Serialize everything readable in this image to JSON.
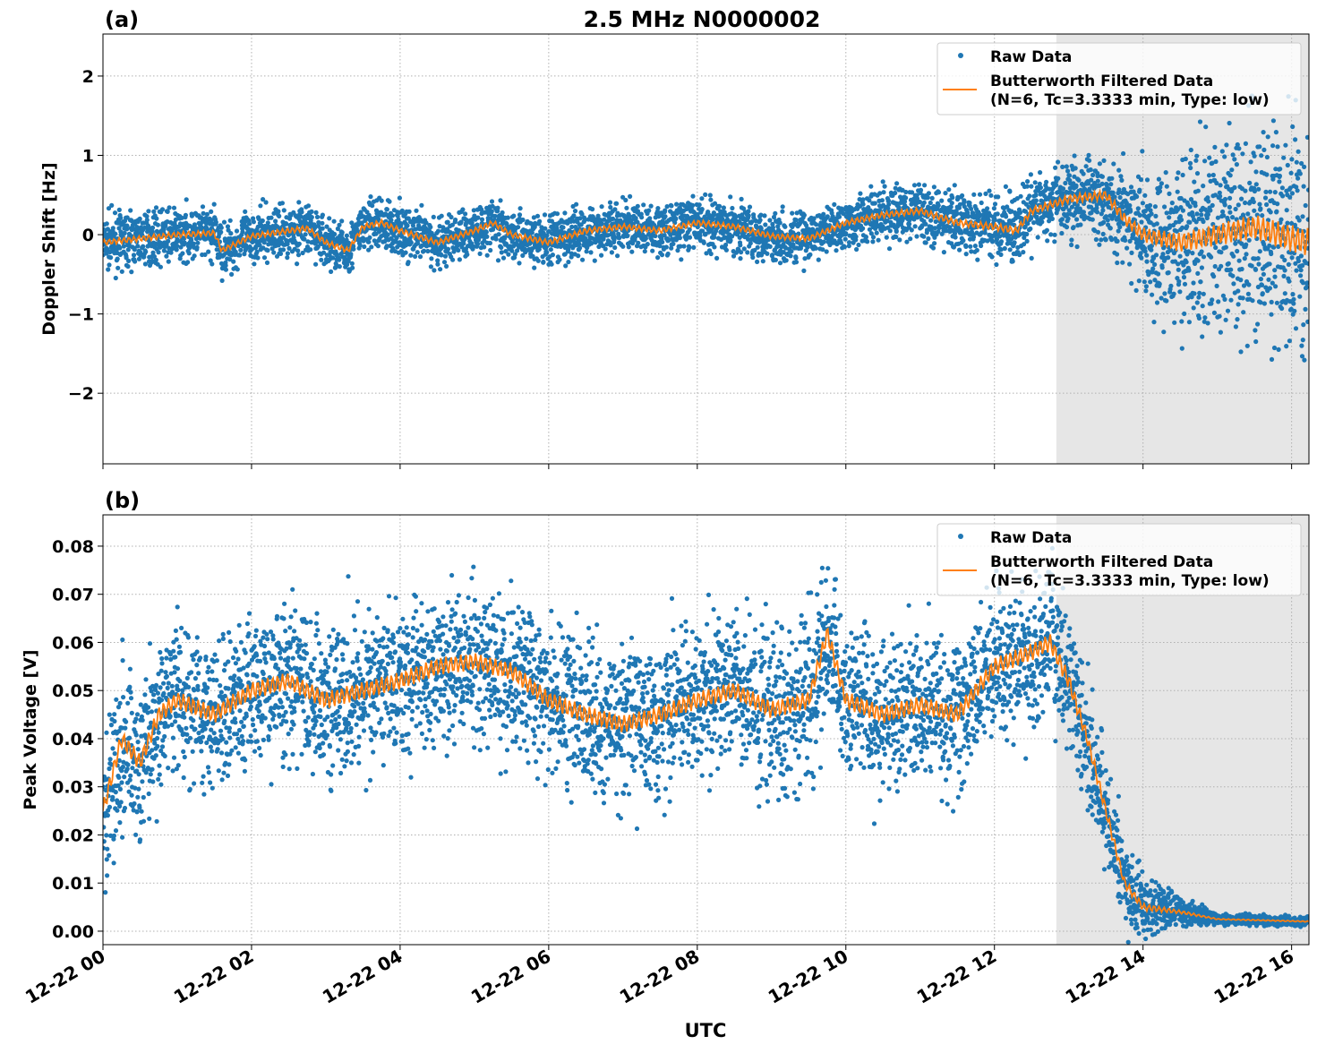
{
  "figure_title": "2.5 MHz N0000002",
  "x_tick_labels": [
    "12-22 00",
    "12-22 02",
    "12-22 04",
    "12-22 06",
    "12-22 08",
    "12-22 10",
    "12-22 12",
    "12-22 14",
    "12-22 16"
  ],
  "x_tick_hours": [
    0,
    2,
    4,
    6,
    8,
    10,
    12,
    14,
    16
  ],
  "xlabel": "UTC",
  "colors": {
    "raw": "#1f77b4",
    "filtered": "#ff7f0e",
    "shade": "#e6e6e6",
    "grid": "#b0b0b0"
  },
  "legend": {
    "raw": "Raw Data",
    "filtered_line1": "Butterworth Filtered Data",
    "filtered_line2": "(N=6, Tc=3.3333 min, Type: low)",
    "placement": "upper-right"
  },
  "chart_data": [
    {
      "type": "scatter+line",
      "panel_label": "(a)",
      "ylabel": "Doppler Shift [Hz]",
      "xlim": [
        "12-22 00:00",
        "12-22 16:14"
      ],
      "ylim": [
        -2.89,
        2.53
      ],
      "y_ticks": [
        -2,
        -1,
        0,
        1,
        2
      ],
      "y_tick_labels": [
        "−2",
        "−1",
        "0",
        "1",
        "2"
      ],
      "grid": true,
      "shaded_region": [
        "12-22 12:50",
        "12-22 16:14"
      ],
      "filtered": {
        "x": [
          "12-22 00:00",
          "12-22 00:30",
          "12-22 01:00",
          "12-22 01:30",
          "12-22 01:36",
          "12-22 02:00",
          "12-22 02:30",
          "12-22 02:45",
          "12-22 03:00",
          "12-22 03:18",
          "12-22 03:30",
          "12-22 03:45",
          "12-22 04:00",
          "12-22 04:30",
          "12-22 05:00",
          "12-22 05:15",
          "12-22 05:30",
          "12-22 06:00",
          "12-22 06:30",
          "12-22 07:00",
          "12-22 07:30",
          "12-22 08:00",
          "12-22 08:30",
          "12-22 09:00",
          "12-22 09:30",
          "12-22 10:00",
          "12-22 10:30",
          "12-22 11:00",
          "12-22 11:30",
          "12-22 12:00",
          "12-22 12:18",
          "12-22 12:30",
          "12-22 13:00",
          "12-22 13:30",
          "12-22 13:45",
          "12-22 14:00",
          "12-22 14:30",
          "12-22 15:00",
          "12-22 15:30",
          "12-22 16:00",
          "12-22 16:14"
        ],
        "y": [
          -0.1,
          -0.05,
          0,
          0.02,
          -0.2,
          -0.02,
          0.05,
          0.08,
          -0.1,
          -0.2,
          0.1,
          0.15,
          0.05,
          -0.1,
          0.05,
          0.15,
          0.0,
          -0.1,
          0.05,
          0.1,
          0.05,
          0.15,
          0.1,
          -0.02,
          -0.05,
          0.15,
          0.25,
          0.3,
          0.15,
          0.1,
          0.05,
          0.3,
          0.45,
          0.5,
          0.2,
          0.0,
          -0.1,
          0.0,
          0.1,
          -0.05,
          -0.1
        ]
      },
      "raw_spread": {
        "x": [
          "12-22 00:00",
          "12-22 10:00",
          "12-22 12:50",
          "12-22 13:30",
          "12-22 14:30",
          "12-22 16:14"
        ],
        "half_width": [
          0.3,
          0.3,
          0.4,
          0.5,
          1.0,
          1.5
        ]
      }
    },
    {
      "type": "scatter+line",
      "panel_label": "(b)",
      "ylabel": "Peak Voltage [V]",
      "xlim": [
        "12-22 00:00",
        "12-22 16:14"
      ],
      "ylim": [
        -0.0028,
        0.0865
      ],
      "y_ticks": [
        0,
        0.01,
        0.02,
        0.03,
        0.04,
        0.05,
        0.06,
        0.07,
        0.08
      ],
      "y_tick_labels": [
        "0.00",
        "0.01",
        "0.02",
        "0.03",
        "0.04",
        "0.05",
        "0.06",
        "0.07",
        "0.08"
      ],
      "grid": true,
      "shaded_region": [
        "12-22 12:50",
        "12-22 16:14"
      ],
      "filtered": {
        "x": [
          "12-22 00:00",
          "12-22 00:15",
          "12-22 00:30",
          "12-22 00:45",
          "12-22 01:00",
          "12-22 01:30",
          "12-22 02:00",
          "12-22 02:30",
          "12-22 03:00",
          "12-22 03:30",
          "12-22 04:00",
          "12-22 04:30",
          "12-22 05:00",
          "12-22 05:30",
          "12-22 06:00",
          "12-22 06:30",
          "12-22 07:00",
          "12-22 07:30",
          "12-22 08:00",
          "12-22 08:30",
          "12-22 09:00",
          "12-22 09:30",
          "12-22 09:45",
          "12-22 10:00",
          "12-22 10:30",
          "12-22 11:00",
          "12-22 11:30",
          "12-22 12:00",
          "12-22 12:30",
          "12-22 12:45",
          "12-22 13:00",
          "12-22 13:15",
          "12-22 13:30",
          "12-22 13:45",
          "12-22 14:00",
          "12-22 14:30",
          "12-22 15:00",
          "12-22 16:14"
        ],
        "y": [
          0.025,
          0.04,
          0.035,
          0.045,
          0.048,
          0.045,
          0.05,
          0.052,
          0.048,
          0.05,
          0.052,
          0.055,
          0.056,
          0.054,
          0.048,
          0.045,
          0.043,
          0.045,
          0.048,
          0.05,
          0.046,
          0.048,
          0.062,
          0.048,
          0.045,
          0.047,
          0.045,
          0.055,
          0.058,
          0.06,
          0.052,
          0.04,
          0.025,
          0.01,
          0.005,
          0.004,
          0.0025,
          0.002
        ]
      },
      "raw_spread": {
        "x": [
          "12-22 00:00",
          "12-22 13:00",
          "12-22 13:15",
          "12-22 13:45",
          "12-22 14:30",
          "12-22 15:00",
          "12-22 16:14"
        ],
        "half_width": [
          0.015,
          0.015,
          0.012,
          0.008,
          0.003,
          0.001,
          0.001
        ]
      }
    }
  ]
}
